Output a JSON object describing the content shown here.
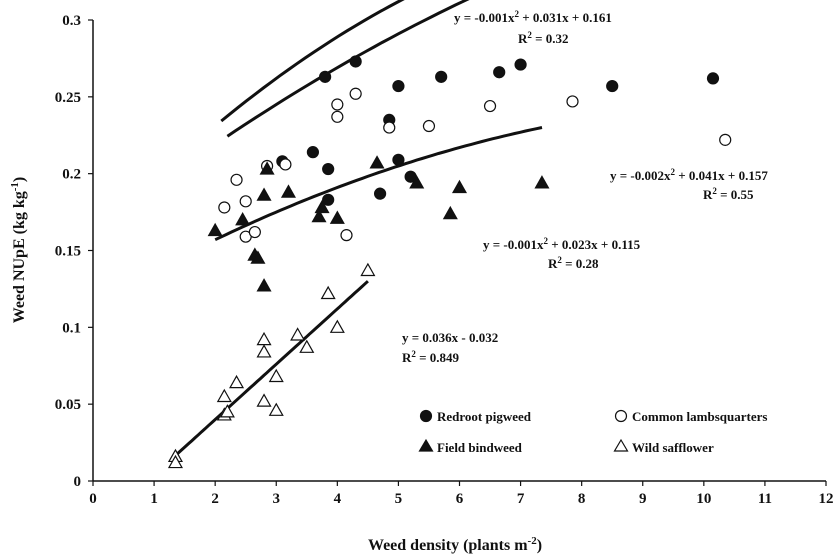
{
  "chart_data": {
    "type": "scatter",
    "xlabel": "Weed density (plants  m",
    "xlabel_sup": "-2",
    "xlabel_tail": ")",
    "ylabel": "Weed NUpE (kg kg",
    "ylabel_sup": "-1",
    "ylabel_tail": ")",
    "xlim": [
      0,
      12
    ],
    "ylim": [
      0,
      0.3
    ],
    "x_ticks": [
      "0",
      "1",
      "2",
      "3",
      "4",
      "5",
      "6",
      "7",
      "8",
      "9",
      "10",
      "11",
      "12"
    ],
    "y_ticks": [
      "0",
      "0.05",
      "0.1",
      "0.15",
      "0.2",
      "0.25",
      "0.3"
    ],
    "legend_position": "bottom-right",
    "series": [
      {
        "name": "Redroot pigweed",
        "marker": "circle-filled",
        "points": [
          [
            3.1,
            0.208
          ],
          [
            3.6,
            0.214
          ],
          [
            3.8,
            0.263
          ],
          [
            3.85,
            0.203
          ],
          [
            3.85,
            0.183
          ],
          [
            4.3,
            0.273
          ],
          [
            4.7,
            0.187
          ],
          [
            4.85,
            0.235
          ],
          [
            5.0,
            0.257
          ],
          [
            5.0,
            0.209
          ],
          [
            5.2,
            0.198
          ],
          [
            5.7,
            0.263
          ],
          [
            6.65,
            0.266
          ],
          [
            7.0,
            0.271
          ],
          [
            8.5,
            0.257
          ],
          [
            10.15,
            0.262
          ]
        ],
        "fit": {
          "a": -0.001,
          "b": 0.031,
          "c": 0.161,
          "x_range": [
            2.2,
            10.2
          ]
        },
        "equation": "y = -0.001x",
        "equation_sup": "2",
        "equation_tail": " + 0.031x + 0.161",
        "r2_label": "R",
        "r2_sup": "2",
        "r2_value": " = 0.32"
      },
      {
        "name": "Common lambsquarters",
        "marker": "circle-open",
        "points": [
          [
            2.15,
            0.178
          ],
          [
            2.35,
            0.196
          ],
          [
            2.5,
            0.182
          ],
          [
            2.5,
            0.159
          ],
          [
            2.65,
            0.162
          ],
          [
            2.85,
            0.205
          ],
          [
            3.15,
            0.206
          ],
          [
            4.0,
            0.237
          ],
          [
            4.0,
            0.245
          ],
          [
            4.15,
            0.16
          ],
          [
            4.3,
            0.252
          ],
          [
            4.85,
            0.23
          ],
          [
            5.5,
            0.231
          ],
          [
            6.5,
            0.244
          ],
          [
            7.85,
            0.247
          ],
          [
            10.35,
            0.222
          ]
        ],
        "fit": {
          "a": -0.002,
          "b": 0.041,
          "c": 0.157,
          "x_range": [
            2.1,
            10.35
          ]
        },
        "equation": "y = -0.002x",
        "equation_sup": "2",
        "equation_tail": " + 0.041x + 0.157",
        "r2_label": "R",
        "r2_sup": "2",
        "r2_value": " = 0.55"
      },
      {
        "name": "Field bindweed",
        "marker": "triangle-filled",
        "points": [
          [
            2.0,
            0.163
          ],
          [
            2.45,
            0.17
          ],
          [
            2.65,
            0.147
          ],
          [
            2.7,
            0.145
          ],
          [
            2.8,
            0.127
          ],
          [
            2.8,
            0.186
          ],
          [
            2.85,
            0.203
          ],
          [
            3.2,
            0.188
          ],
          [
            3.7,
            0.172
          ],
          [
            3.75,
            0.178
          ],
          [
            4.0,
            0.171
          ],
          [
            4.65,
            0.207
          ],
          [
            5.3,
            0.194
          ],
          [
            5.85,
            0.174
          ],
          [
            6.0,
            0.191
          ],
          [
            7.35,
            0.194
          ]
        ],
        "fit": {
          "a": -0.001,
          "b": 0.023,
          "c": 0.115,
          "x_range": [
            2.0,
            7.35
          ]
        },
        "equation": "y = -0.001x",
        "equation_sup": "2",
        "equation_tail": " + 0.023x + 0.115",
        "r2_label": "R",
        "r2_sup": "2",
        "r2_value": " = 0.28"
      },
      {
        "name": "Wild safflower",
        "marker": "triangle-open",
        "points": [
          [
            1.35,
            0.016
          ],
          [
            1.35,
            0.012
          ],
          [
            2.15,
            0.055
          ],
          [
            2.15,
            0.043
          ],
          [
            2.2,
            0.045
          ],
          [
            2.35,
            0.064
          ],
          [
            2.8,
            0.092
          ],
          [
            2.8,
            0.084
          ],
          [
            2.8,
            0.052
          ],
          [
            3.0,
            0.068
          ],
          [
            3.0,
            0.046
          ],
          [
            3.35,
            0.095
          ],
          [
            3.5,
            0.087
          ],
          [
            3.85,
            0.122
          ],
          [
            4.0,
            0.1
          ],
          [
            4.5,
            0.137
          ]
        ],
        "fit": {
          "a": 0,
          "b": 0.036,
          "c": -0.032,
          "x_range": [
            1.3,
            4.5
          ]
        },
        "equation": "y = 0.036x - 0.032",
        "r2_label": "R",
        "r2_sup": "2",
        "r2_value": " = 0.849"
      }
    ]
  }
}
